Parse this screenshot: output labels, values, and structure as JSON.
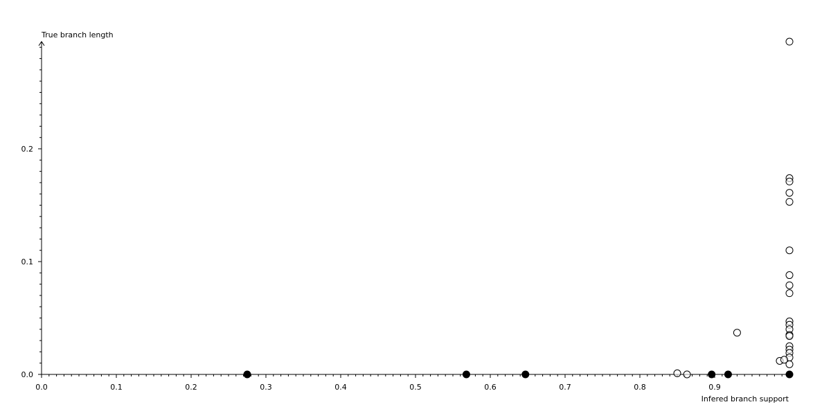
{
  "chart_data": {
    "type": "scatter",
    "title": "",
    "xlabel": "Infered branch support",
    "ylabel": "True branch length",
    "xlim": [
      0,
      1.0
    ],
    "ylim": [
      0,
      0.295
    ],
    "x_ticks": [
      0.0,
      0.1,
      0.2,
      0.3,
      0.4,
      0.5,
      0.6,
      0.7,
      0.8,
      0.9
    ],
    "x_tick_labels": [
      "0.0",
      "0.1",
      "0.2",
      "0.3",
      "0.4",
      "0.5",
      "0.6",
      "0.7",
      "0.8",
      "0.9"
    ],
    "y_ticks": [
      0.0,
      0.1,
      0.2
    ],
    "y_tick_labels": [
      "0.0",
      "0.1",
      "0.2"
    ],
    "grid": false,
    "series": [
      {
        "marker": "open-circle",
        "color": "#000000",
        "points": [
          [
            1.0,
            0.295
          ],
          [
            1.0,
            0.174
          ],
          [
            1.0,
            0.171
          ],
          [
            1.0,
            0.161
          ],
          [
            1.0,
            0.153
          ],
          [
            1.0,
            0.11
          ],
          [
            1.0,
            0.088
          ],
          [
            1.0,
            0.079
          ],
          [
            1.0,
            0.072
          ],
          [
            1.0,
            0.047
          ],
          [
            1.0,
            0.044
          ],
          [
            1.0,
            0.04
          ],
          [
            1.0,
            0.035
          ],
          [
            1.0,
            0.034
          ],
          [
            1.0,
            0.025
          ],
          [
            1.0,
            0.022
          ],
          [
            1.0,
            0.019
          ],
          [
            1.0,
            0.015
          ],
          [
            1.0,
            0.009
          ],
          [
            0.987,
            0.012
          ],
          [
            0.993,
            0.013
          ],
          [
            0.93,
            0.037
          ],
          [
            0.85,
            0.001
          ],
          [
            0.863,
            0.0
          ]
        ]
      },
      {
        "marker": "filled-circle",
        "color": "#000000",
        "points": [
          [
            0.275,
            0.0
          ],
          [
            0.568,
            0.0
          ],
          [
            0.647,
            0.0
          ],
          [
            0.896,
            0.0
          ],
          [
            0.918,
            0.0
          ],
          [
            1.0,
            0.0
          ]
        ]
      }
    ]
  }
}
